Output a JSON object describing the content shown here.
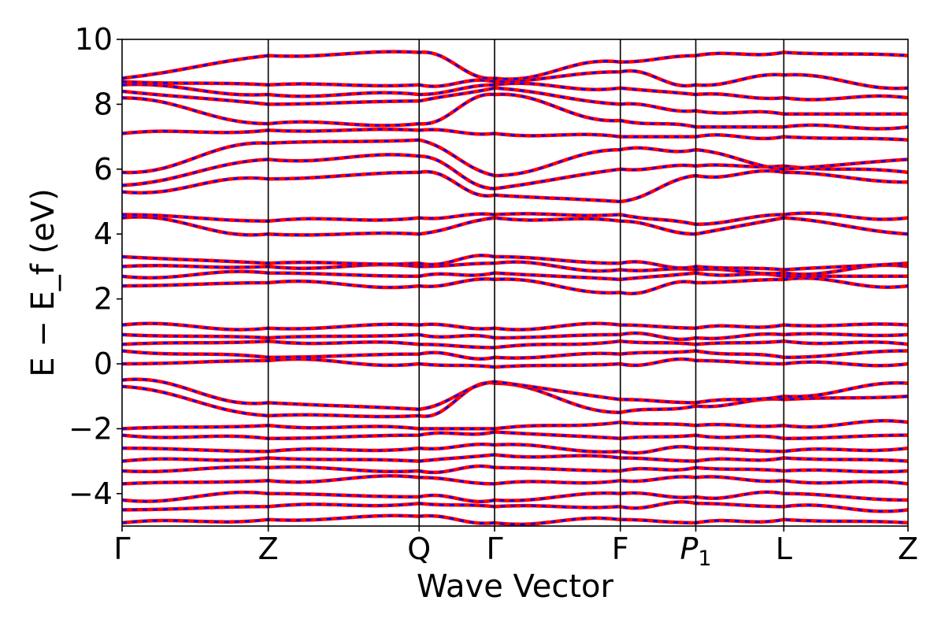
{
  "chart_data": {
    "type": "line",
    "title": "",
    "xlabel": "Wave Vector",
    "ylabel": "E − E_f (eV)",
    "ylim": [
      -5,
      10
    ],
    "yticks": [
      "−4",
      "−2",
      "0",
      "2",
      "4",
      "6",
      "8",
      "10"
    ],
    "ytick_values": [
      -4,
      -2,
      0,
      2,
      4,
      6,
      8,
      10
    ],
    "xticks": [
      {
        "label": "Γ",
        "sub": ""
      },
      {
        "label": "Z",
        "sub": ""
      },
      {
        "label": "Q",
        "sub": ""
      },
      {
        "label": "Γ",
        "sub": ""
      },
      {
        "label": "F",
        "sub": ""
      },
      {
        "label": "P",
        "sub": "1"
      },
      {
        "label": "L",
        "sub": ""
      },
      {
        "label": "Z",
        "sub": ""
      }
    ],
    "xtick_positions": [
      0,
      0.186,
      0.378,
      0.474,
      0.634,
      0.73,
      0.842,
      1.0
    ],
    "grid": false,
    "series_colors": {
      "a": "#ff0000",
      "b": "#0000ff"
    },
    "bands_eV_at_kpoints": [
      [
        -4.9,
        -4.8,
        -4.7,
        -4.9,
        -4.8,
        -4.9,
        -4.8,
        -4.9
      ],
      [
        -4.5,
        -4.4,
        -4.3,
        -4.4,
        -4.4,
        -4.3,
        -4.4,
        -4.5
      ],
      [
        -4.2,
        -4.0,
        -4.1,
        -4.2,
        -4.0,
        -4.1,
        -4.0,
        -4.2
      ],
      [
        -3.7,
        -3.6,
        -3.5,
        -3.7,
        -3.6,
        -3.5,
        -3.6,
        -3.7
      ],
      [
        -3.3,
        -3.2,
        -3.3,
        -3.2,
        -3.3,
        -3.2,
        -3.3,
        -3.3
      ],
      [
        -3.0,
        -2.9,
        -3.0,
        -2.8,
        -2.9,
        -3.0,
        -2.9,
        -3.0
      ],
      [
        -2.6,
        -2.7,
        -2.6,
        -2.5,
        -2.7,
        -2.6,
        -2.7,
        -2.6
      ],
      [
        -2.2,
        -2.3,
        -2.2,
        -2.1,
        -2.3,
        -2.2,
        -2.3,
        -2.2
      ],
      [
        -2.0,
        -1.9,
        -2.0,
        -2.0,
        -1.8,
        -1.9,
        -1.9,
        -1.8
      ],
      [
        -0.7,
        -1.6,
        -1.6,
        -0.6,
        -1.5,
        -1.3,
        -1.1,
        -1.0
      ],
      [
        -0.5,
        -1.2,
        -1.4,
        -0.55,
        -1.1,
        -1.2,
        -1.0,
        -0.6
      ],
      [
        0.0,
        0.1,
        0.0,
        -0.1,
        0.0,
        0.1,
        0.0,
        0.0
      ],
      [
        0.4,
        0.2,
        0.3,
        0.2,
        0.3,
        0.4,
        0.2,
        0.4
      ],
      [
        0.6,
        0.7,
        0.6,
        0.5,
        0.7,
        0.6,
        0.7,
        0.6
      ],
      [
        0.9,
        0.8,
        0.9,
        0.8,
        0.9,
        0.8,
        0.9,
        0.9
      ],
      [
        1.2,
        1.1,
        1.2,
        1.1,
        1.2,
        1.1,
        1.2,
        1.2
      ],
      [
        2.4,
        2.5,
        2.4,
        2.6,
        2.2,
        2.5,
        2.6,
        2.4
      ],
      [
        2.7,
        2.8,
        2.7,
        2.8,
        2.6,
        2.8,
        2.7,
        2.7
      ],
      [
        3.0,
        3.0,
        3.0,
        3.1,
        2.9,
        2.9,
        2.8,
        3.0
      ],
      [
        3.3,
        3.1,
        3.1,
        3.3,
        3.1,
        3.0,
        2.9,
        3.1
      ],
      [
        4.5,
        4.0,
        4.0,
        4.5,
        4.4,
        4.0,
        4.5,
        4.0
      ],
      [
        4.6,
        4.4,
        4.5,
        4.6,
        4.6,
        4.3,
        4.6,
        4.5
      ],
      [
        5.3,
        5.7,
        5.9,
        5.2,
        5.0,
        5.8,
        5.9,
        5.6
      ],
      [
        5.5,
        6.3,
        6.4,
        5.4,
        6.0,
        6.1,
        6.1,
        5.9
      ],
      [
        5.9,
        6.8,
        6.9,
        5.8,
        6.6,
        6.6,
        6.0,
        6.3
      ],
      [
        7.1,
        7.2,
        7.2,
        7.1,
        7.0,
        7.0,
        7.0,
        6.9
      ],
      [
        8.2,
        7.4,
        7.4,
        8.3,
        7.5,
        7.3,
        7.3,
        7.3
      ],
      [
        8.4,
        8.0,
        8.1,
        8.5,
        8.0,
        7.8,
        7.7,
        7.7
      ],
      [
        8.6,
        8.3,
        8.3,
        8.6,
        8.5,
        8.3,
        8.2,
        8.2
      ],
      [
        8.7,
        8.6,
        8.6,
        8.7,
        9.0,
        8.6,
        8.9,
        8.5
      ],
      [
        8.8,
        9.5,
        9.6,
        8.8,
        9.3,
        9.5,
        9.6,
        9.5
      ]
    ]
  }
}
